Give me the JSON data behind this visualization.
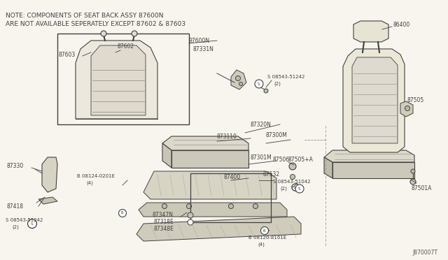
{
  "bg": "#f8f5ee",
  "lc": "#404040",
  "tc": "#404040",
  "figsize": [
    6.4,
    3.72
  ],
  "dpi": 100,
  "note1": "NOTE: COMPONENTS OF SEAT BACK ASSY 87600N",
  "note2": "ARE NOT AVAILABLE SEPERATELY EXCEPT 87602 & 87603",
  "diagram_id": "J870007T"
}
